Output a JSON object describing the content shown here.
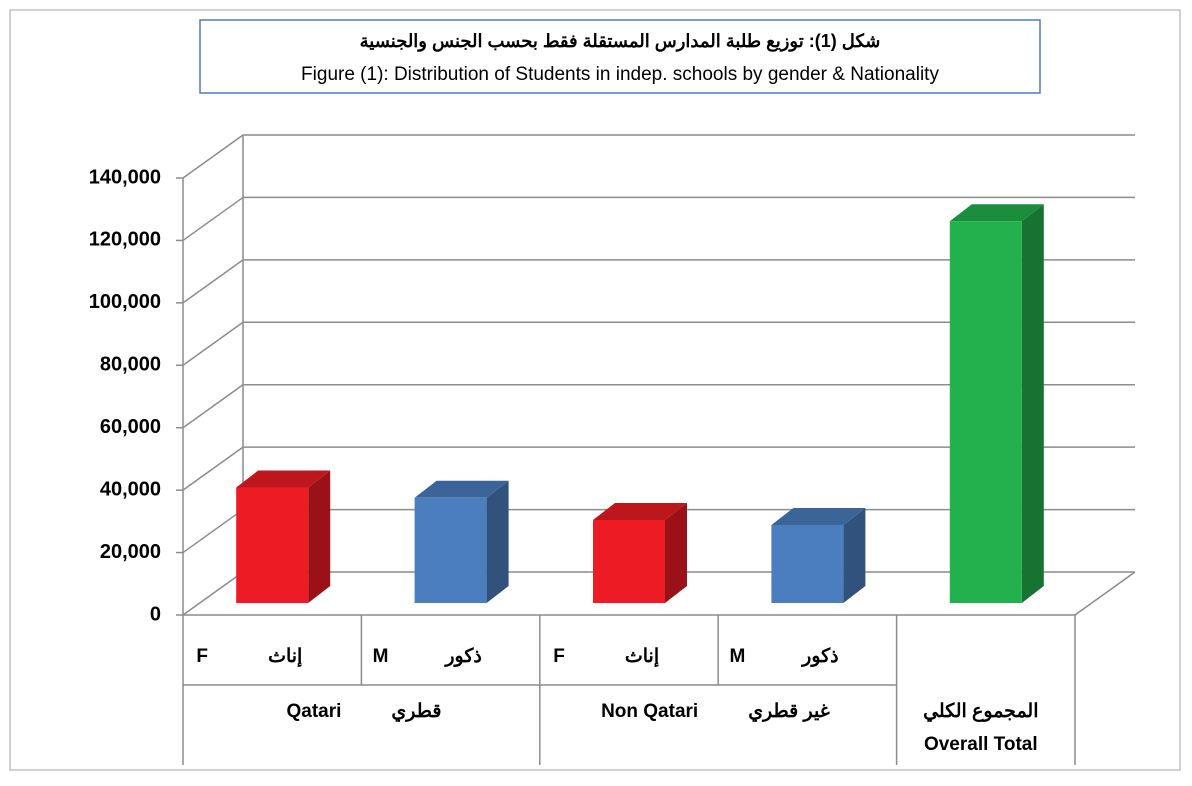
{
  "chart_data": {
    "type": "bar3d",
    "title": "شكل (1): توزيع طلبة المدارس المستقلة فقط بحسب الجنس والجنسية",
    "subtitle": "Figure (1): Distribution of Students in indep. schools by gender & Nationality",
    "categories": [
      [
        "F",
        "إناث"
      ],
      [
        "M",
        "ذكور"
      ],
      [
        "F",
        "إناث"
      ],
      [
        "M",
        "ذكور"
      ],
      [
        "المجموع الكلي",
        "Overall Total"
      ]
    ],
    "groups": [
      {
        "labels": [
          "Qatari",
          "قطري"
        ]
      },
      {
        "labels": [
          "Non Qatari",
          "غير قطري"
        ]
      }
    ],
    "values": [
      37000,
      33700,
      26600,
      25000,
      122300
    ],
    "colors": [
      "#ed1c24",
      "#4a7ebf",
      "#ed1c24",
      "#4a7ebf",
      "#22b14c"
    ],
    "ylim": [
      0,
      140000
    ],
    "yticks": [
      0,
      {
        "value": 20000,
        "label": "20,000"
      },
      {
        "value": 40000,
        "label": "40,000"
      },
      {
        "value": 60000,
        "label": "60,000"
      },
      {
        "value": 80000,
        "label": "80,000"
      },
      {
        "value": 100000,
        "label": "100,000"
      },
      {
        "value": 120000,
        "label": "120,000"
      },
      {
        "value": 140000,
        "label": "140,000"
      }
    ],
    "grid": true
  }
}
